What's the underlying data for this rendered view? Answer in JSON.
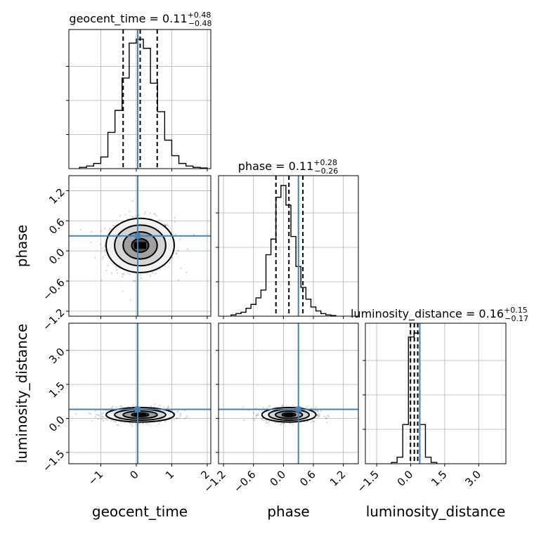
{
  "chart_data": {
    "type": "corner",
    "parameters": [
      "geocent_time",
      "phase",
      "luminosity_distance"
    ],
    "axis_labels": [
      "geocent_time",
      "phase",
      "luminosity_distance"
    ],
    "ranges": [
      [
        -1.9,
        2.1
      ],
      [
        -1.3,
        1.5
      ],
      [
        -2.0,
        4.2
      ]
    ],
    "ticks": [
      {
        "values": [
          -1,
          0,
          1,
          2
        ],
        "labels": [
          "−1",
          "0",
          "1",
          "2"
        ]
      },
      {
        "values": [
          -1.2,
          -0.6,
          0.0,
          0.6,
          1.2
        ],
        "labels": [
          "−1.2",
          "−0.6",
          "0.0",
          "0.6",
          "1.2"
        ]
      },
      {
        "values": [
          -1.5,
          0.0,
          1.5,
          3.0
        ],
        "labels": [
          "−1.5",
          "0.0",
          "1.5",
          "3.0"
        ]
      }
    ],
    "titles": [
      {
        "name": "geocent_time",
        "median": "0.11",
        "plus": "+0.48",
        "minus": "−0.48"
      },
      {
        "name": "phase",
        "median": "0.11",
        "plus": "+0.28",
        "minus": "−0.26"
      },
      {
        "name": "luminosity_distance",
        "median": "0.16",
        "plus": "+0.15",
        "minus": "−0.17"
      }
    ],
    "marginals": [
      {
        "bin_edges": [
          -1.6,
          -1.4,
          -1.2,
          -1.0,
          -0.8,
          -0.6,
          -0.4,
          -0.2,
          0.0,
          0.2,
          0.4,
          0.6,
          0.8,
          1.0,
          1.2,
          1.4,
          1.6,
          1.8,
          2.0
        ],
        "counts": [
          0.01,
          0.02,
          0.04,
          0.09,
          0.28,
          0.45,
          0.7,
          0.97,
          1.0,
          0.93,
          0.66,
          0.44,
          0.22,
          0.1,
          0.04,
          0.02,
          0.01,
          0.005
        ],
        "quantiles": [
          -0.37,
          0.11,
          0.59
        ],
        "truth": 0.04
      },
      {
        "bin_edges": [
          -1.05,
          -0.95,
          -0.85,
          -0.75,
          -0.65,
          -0.55,
          -0.45,
          -0.35,
          -0.25,
          -0.15,
          -0.05,
          0.05,
          0.15,
          0.25,
          0.35,
          0.45,
          0.55,
          0.65,
          0.75,
          0.85,
          0.95,
          1.05
        ],
        "counts": [
          0.01,
          0.02,
          0.03,
          0.06,
          0.09,
          0.14,
          0.2,
          0.47,
          0.59,
          0.91,
          1.0,
          0.85,
          0.61,
          0.38,
          0.22,
          0.13,
          0.07,
          0.04,
          0.02,
          0.01,
          0.005
        ],
        "quantiles": [
          -0.15,
          0.11,
          0.39
        ],
        "truth": 0.3
      },
      {
        "bin_edges": [
          -0.85,
          -0.6,
          -0.35,
          -0.1,
          0.15,
          0.4,
          0.65,
          0.9,
          1.15
        ],
        "counts": [
          0.01,
          0.05,
          0.3,
          0.97,
          1.0,
          0.3,
          0.05,
          0.01
        ],
        "quantiles": [
          -0.01,
          0.16,
          0.31
        ],
        "truth": 0.4
      }
    ],
    "truths": [
      0.04,
      0.3,
      0.4
    ],
    "grid": true
  }
}
